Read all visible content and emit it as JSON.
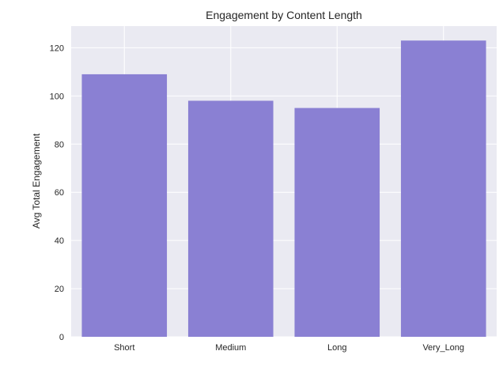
{
  "chart_data": {
    "type": "bar",
    "title": "Engagement by Content Length",
    "xlabel": "",
    "ylabel": "Avg Total Engagement",
    "categories": [
      "Short",
      "Medium",
      "Long",
      "Very_Long"
    ],
    "values": [
      109,
      98,
      95,
      123
    ],
    "ylim": [
      0,
      129
    ],
    "yticks": [
      0,
      20,
      40,
      60,
      80,
      100,
      120
    ],
    "grid": true,
    "legend": "none",
    "colors": {
      "bar": "#8a80d3",
      "plot_background": "#eaeaf2",
      "grid": "#ffffff",
      "text": "#262626"
    }
  }
}
